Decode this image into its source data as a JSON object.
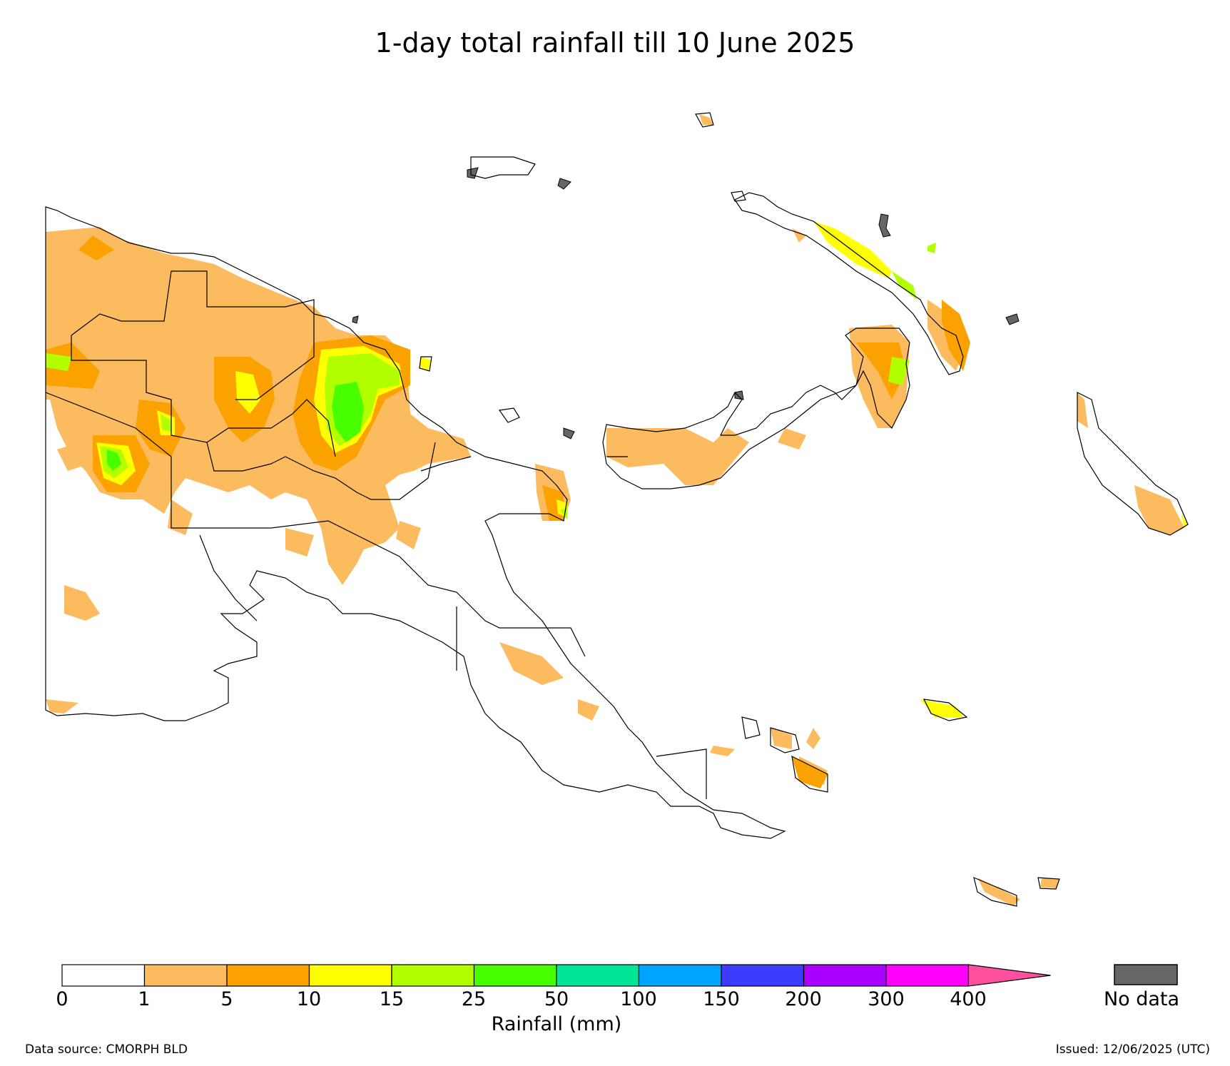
{
  "title": "1-day total rainfall till 10 June 2025",
  "colorbar": {
    "label": "Rainfall (mm)",
    "ticks": [
      "0",
      "1",
      "5",
      "10",
      "15",
      "25",
      "50",
      "100",
      "150",
      "200",
      "300",
      "400"
    ],
    "colors": [
      "#ffffff",
      "#fcbb5e",
      "#fba200",
      "#ffff00",
      "#b2ff00",
      "#48ff00",
      "#00e696",
      "#00a5ff",
      "#3c3cff",
      "#aa00ff",
      "#ff00ff",
      "#ff4f9f"
    ],
    "no_data_label": "No data",
    "no_data_color": "#666666"
  },
  "data_source": "Data source: CMORPH BLD",
  "issued": "Issued: 12/06/2025 (UTC)"
}
